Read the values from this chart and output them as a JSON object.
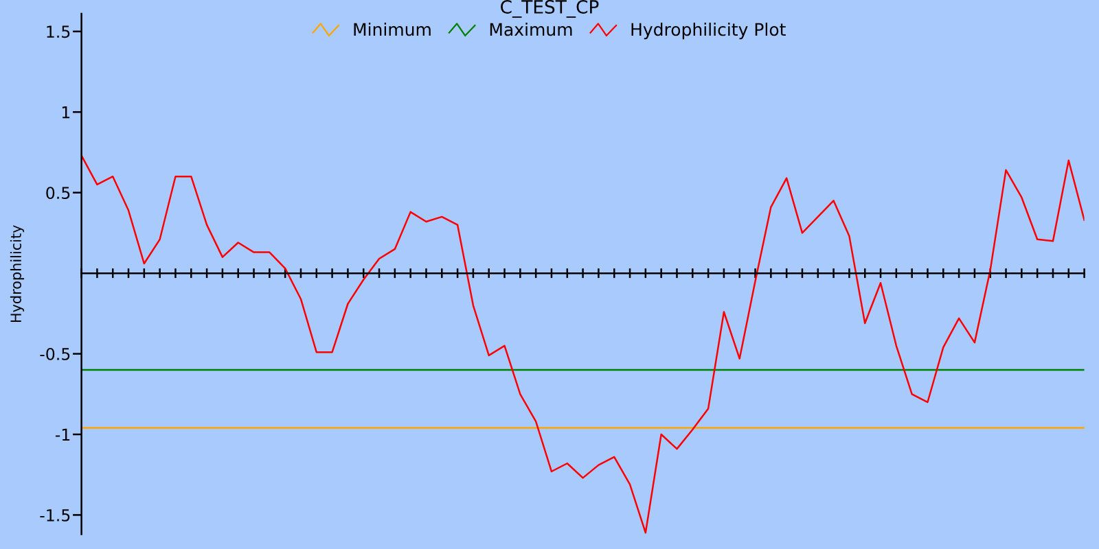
{
  "chart_data": {
    "type": "line",
    "title": "C_TEST_CP",
    "ylabel": "Hydrophilicity",
    "categories": [
      null,
      null,
      null,
      null,
      null,
      null,
      null,
      null,
      null,
      null,
      null,
      null,
      null,
      null,
      null,
      null,
      null,
      null,
      null,
      null,
      null,
      null,
      null,
      null,
      null,
      null,
      null,
      null,
      null,
      null,
      null,
      null,
      null,
      null,
      null,
      null,
      null,
      null,
      null,
      null,
      null,
      null,
      null,
      null,
      null,
      null,
      null,
      null,
      null,
      null,
      null,
      null,
      null,
      null,
      null,
      null,
      null,
      null,
      null,
      null,
      null,
      null,
      null,
      null,
      null
    ],
    "series": [
      {
        "name": "Minimum",
        "color": "#ffa500",
        "values": [
          -0.96,
          -0.96,
          -0.96,
          -0.96,
          -0.96,
          -0.96,
          -0.96,
          -0.96,
          -0.96,
          -0.96,
          -0.96,
          -0.96,
          -0.96,
          -0.96,
          -0.96,
          -0.96,
          -0.96,
          -0.96,
          -0.96,
          -0.96,
          -0.96,
          -0.96,
          -0.96,
          -0.96,
          -0.96,
          -0.96,
          -0.96,
          -0.96,
          -0.96,
          -0.96,
          -0.96,
          -0.96,
          -0.96,
          -0.96,
          -0.96,
          -0.96,
          -0.96,
          -0.96,
          -0.96,
          -0.96,
          -0.96,
          -0.96,
          -0.96,
          -0.96,
          -0.96,
          -0.96,
          -0.96,
          -0.96,
          -0.96,
          -0.96,
          -0.96,
          -0.96,
          -0.96,
          -0.96,
          -0.96,
          -0.96,
          -0.96,
          -0.96,
          -0.96,
          -0.96,
          -0.96,
          -0.96,
          -0.96,
          -0.96,
          -0.96
        ]
      },
      {
        "name": "Maximum",
        "color": "#008000",
        "values": [
          -0.6,
          -0.6,
          -0.6,
          -0.6,
          -0.6,
          -0.6,
          -0.6,
          -0.6,
          -0.6,
          -0.6,
          -0.6,
          -0.6,
          -0.6,
          -0.6,
          -0.6,
          -0.6,
          -0.6,
          -0.6,
          -0.6,
          -0.6,
          -0.6,
          -0.6,
          -0.6,
          -0.6,
          -0.6,
          -0.6,
          -0.6,
          -0.6,
          -0.6,
          -0.6,
          -0.6,
          -0.6,
          -0.6,
          -0.6,
          -0.6,
          -0.6,
          -0.6,
          -0.6,
          -0.6,
          -0.6,
          -0.6,
          -0.6,
          -0.6,
          -0.6,
          -0.6,
          -0.6,
          -0.6,
          -0.6,
          -0.6,
          -0.6,
          -0.6,
          -0.6,
          -0.6,
          -0.6,
          -0.6,
          -0.6,
          -0.6,
          -0.6,
          -0.6,
          -0.6,
          -0.6,
          -0.6,
          -0.6,
          -0.6,
          -0.6
        ]
      },
      {
        "name": "Hydrophilicity Plot",
        "color": "#ff0000",
        "values": [
          0.73,
          0.55,
          0.6,
          0.39,
          0.06,
          0.21,
          0.6,
          0.6,
          0.3,
          0.1,
          0.19,
          0.13,
          0.13,
          0.03,
          -0.16,
          -0.49,
          -0.49,
          -0.19,
          -0.04,
          0.09,
          0.15,
          0.38,
          0.32,
          0.35,
          0.3,
          -0.2,
          -0.51,
          -0.45,
          -0.75,
          -0.92,
          -1.23,
          -1.18,
          -1.27,
          -1.19,
          -1.14,
          -1.31,
          -1.61,
          -1.0,
          -1.09,
          -0.97,
          -0.84,
          -0.24,
          -0.53,
          -0.05,
          0.41,
          0.59,
          0.25,
          0.35,
          0.45,
          0.23,
          -0.31,
          -0.06,
          -0.45,
          -0.75,
          -0.8,
          -0.46,
          -0.28,
          -0.43,
          0.02,
          0.64,
          0.47,
          0.21,
          0.2,
          0.7,
          0.33
        ]
      }
    ],
    "ylim": [
      -1.62,
      1.61
    ],
    "yticks": [
      -1.5,
      -1,
      -0.5,
      0.5,
      1,
      1.5
    ],
    "tick_labels": "y",
    "legend": "top",
    "grid": false,
    "line_style": "solid"
  }
}
